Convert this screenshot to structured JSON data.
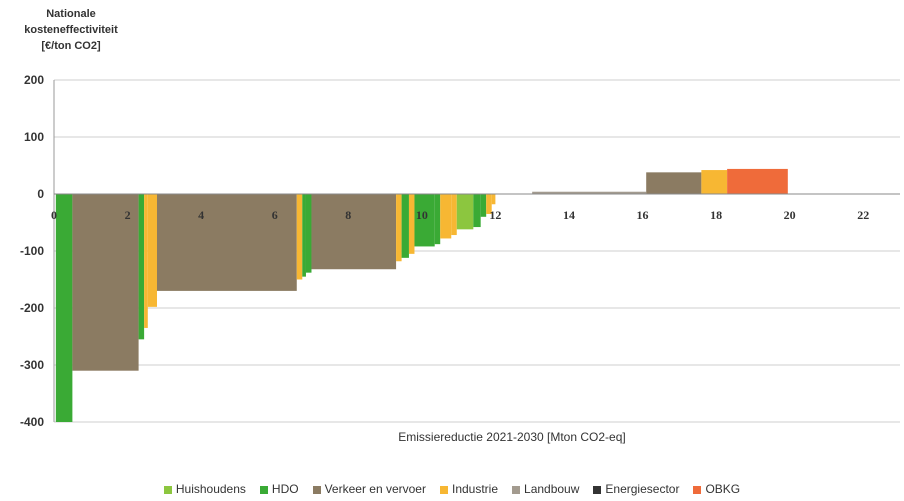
{
  "chart_data": {
    "type": "bar",
    "ylabel_lines": [
      "Nationale",
      "kosteneffectiviteit",
      "[€/ton CO2]"
    ],
    "xlabel": "Emissiereductie 2021-2030 [Mton CO2-eq]",
    "xlim": [
      0,
      23
    ],
    "ylim": [
      -400,
      200
    ],
    "xticks": [
      2,
      4,
      6,
      8,
      10,
      12,
      14,
      16,
      18,
      20,
      22
    ],
    "xtick_labels": [
      "2",
      "4",
      "6",
      "8",
      "10",
      "12",
      "14",
      "16",
      "18",
      "20",
      "22"
    ],
    "yticks": [
      200,
      100,
      0,
      -100,
      -200,
      -300,
      -400
    ],
    "ytick_labels": [
      "200",
      "100",
      "0",
      "-100",
      "-200",
      "-300",
      "-400"
    ],
    "grid": true,
    "legend_position": "bottom",
    "colors": {
      "Huishoudens": "#8cc63f",
      "HDO": "#3aaa35",
      "Verkeer en vervoer": "#8b7b62",
      "Industrie": "#f7b733",
      "Landbouw": "#a39b8f",
      "Energiesector": "#333333",
      "OBKG": "#ef6b3a"
    },
    "series": [
      {
        "name": "Huishoudens"
      },
      {
        "name": "HDO"
      },
      {
        "name": "Verkeer en vervoer"
      },
      {
        "name": "Industrie"
      },
      {
        "name": "Landbouw"
      },
      {
        "name": "Energiesector"
      },
      {
        "name": "OBKG"
      }
    ],
    "bars": [
      {
        "x0": 0.05,
        "x1": 0.5,
        "y": -400,
        "series": "HDO"
      },
      {
        "x0": 0.5,
        "x1": 2.3,
        "y": -310,
        "series": "Verkeer en vervoer"
      },
      {
        "x0": 2.3,
        "x1": 2.45,
        "y": -255,
        "series": "HDO"
      },
      {
        "x0": 2.45,
        "x1": 2.55,
        "y": -235,
        "series": "Industrie"
      },
      {
        "x0": 2.55,
        "x1": 2.8,
        "y": -198,
        "series": "Industrie"
      },
      {
        "x0": 2.8,
        "x1": 6.6,
        "y": -170,
        "series": "Verkeer en vervoer"
      },
      {
        "x0": 6.6,
        "x1": 6.75,
        "y": -150,
        "series": "Industrie"
      },
      {
        "x0": 6.75,
        "x1": 6.85,
        "y": -145,
        "series": "HDO"
      },
      {
        "x0": 6.85,
        "x1": 7.0,
        "y": -138,
        "series": "HDO"
      },
      {
        "x0": 7.0,
        "x1": 9.3,
        "y": -132,
        "series": "Verkeer en vervoer"
      },
      {
        "x0": 9.3,
        "x1": 9.45,
        "y": -118,
        "series": "Industrie"
      },
      {
        "x0": 9.45,
        "x1": 9.65,
        "y": -112,
        "series": "HDO"
      },
      {
        "x0": 9.65,
        "x1": 9.8,
        "y": -105,
        "series": "Industrie"
      },
      {
        "x0": 9.8,
        "x1": 10.35,
        "y": -92,
        "series": "HDO"
      },
      {
        "x0": 10.35,
        "x1": 10.5,
        "y": -88,
        "series": "HDO"
      },
      {
        "x0": 10.5,
        "x1": 10.8,
        "y": -78,
        "series": "Industrie"
      },
      {
        "x0": 10.8,
        "x1": 10.95,
        "y": -72,
        "series": "Industrie"
      },
      {
        "x0": 10.95,
        "x1": 11.4,
        "y": -62,
        "series": "Huishoudens"
      },
      {
        "x0": 11.4,
        "x1": 11.6,
        "y": -58,
        "series": "HDO"
      },
      {
        "x0": 11.6,
        "x1": 11.75,
        "y": -40,
        "series": "HDO"
      },
      {
        "x0": 11.75,
        "x1": 11.9,
        "y": -35,
        "series": "Industrie"
      },
      {
        "x0": 11.9,
        "x1": 12.0,
        "y": -18,
        "series": "Industrie"
      },
      {
        "x0": 13.0,
        "x1": 16.1,
        "y": 4,
        "series": "Landbouw"
      },
      {
        "x0": 16.1,
        "x1": 17.6,
        "y": 38,
        "series": "Verkeer en vervoer"
      },
      {
        "x0": 17.6,
        "x1": 18.3,
        "y": 42,
        "series": "Industrie"
      },
      {
        "x0": 18.3,
        "x1": 19.95,
        "y": 44,
        "series": "OBKG"
      }
    ]
  }
}
